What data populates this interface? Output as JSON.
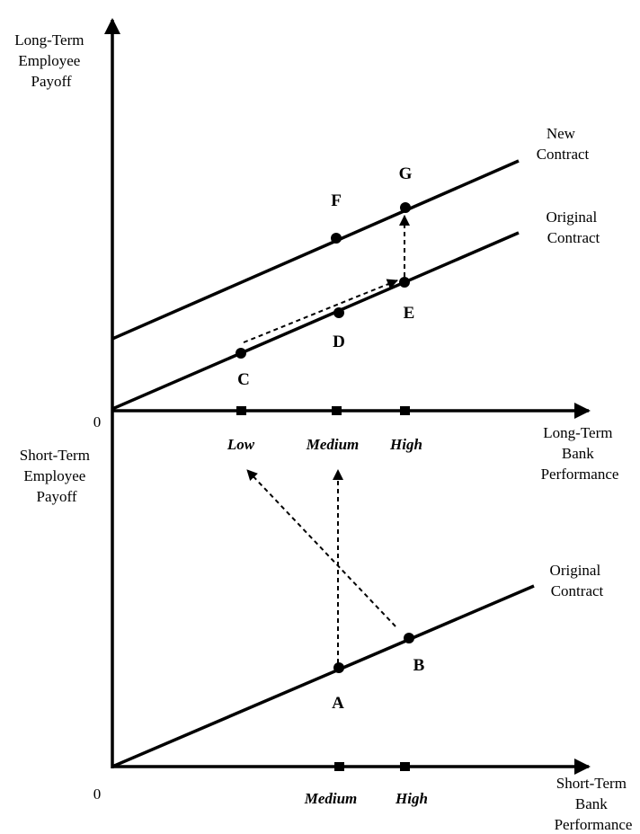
{
  "axes": {
    "upper_y_label": [
      "Long-Term",
      "Employee",
      "Payoff"
    ],
    "upper_x_label": [
      "Long-Term",
      "Bank",
      "Performance"
    ],
    "lower_y_label": [
      "Short-Term",
      "Employee",
      "Payoff"
    ],
    "lower_x_label": [
      "Short-Term",
      "Bank",
      "Performance"
    ],
    "upper_origin": "0",
    "lower_origin": "0"
  },
  "upper_ticks": [
    "Low",
    "Medium",
    "High"
  ],
  "lower_ticks": [
    "Medium",
    "High"
  ],
  "line_labels": {
    "new_contract": [
      "New",
      "Contract"
    ],
    "original_upper": [
      "Original",
      "Contract"
    ],
    "original_lower": [
      "Original",
      "Contract"
    ]
  },
  "points": {
    "A": "A",
    "B": "B",
    "C": "C",
    "D": "D",
    "E": "E",
    "F": "F",
    "G": "G"
  }
}
